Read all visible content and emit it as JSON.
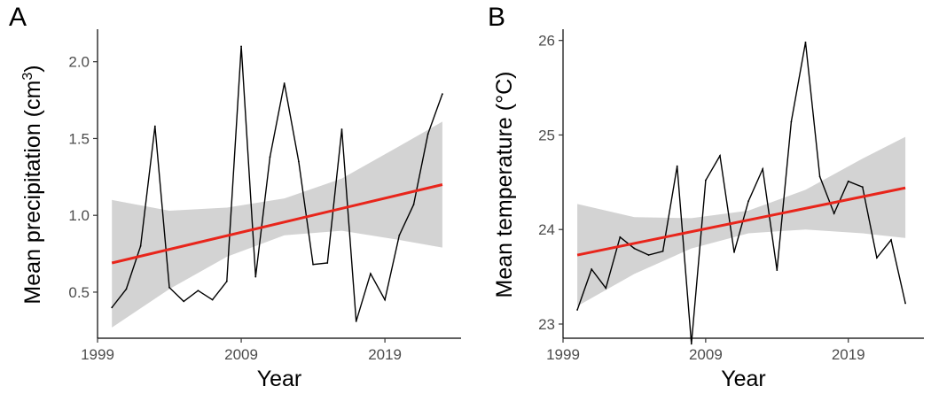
{
  "colors": {
    "trend": "#e8251b",
    "band": "#d3d3d3",
    "series": "#000000"
  },
  "chart_data": [
    {
      "panel": "A",
      "type": "line",
      "xlabel": "Year",
      "ylabel": "Mean precipitation (cm",
      "ylabel_sup": "3",
      "ylabel_close": ")",
      "xlim": [
        1999,
        2024.3
      ],
      "ylim": [
        0.2,
        2.2
      ],
      "xticks": [
        1999,
        2009,
        2019
      ],
      "yticks": [
        0.5,
        1.0,
        1.5,
        2.0
      ],
      "ytick_labels": [
        "0.5",
        "1.0",
        "1.5",
        "2.0"
      ],
      "grid": false,
      "series": [
        {
          "x": [
            2000,
            2001,
            2002,
            2003,
            2004,
            2005,
            2006,
            2007,
            2008,
            2009,
            2010,
            2011,
            2012,
            2013,
            2014,
            2015,
            2016,
            2017,
            2018,
            2019,
            2020,
            2021,
            2022,
            2023
          ],
          "y": [
            0.4,
            0.52,
            0.8,
            1.58,
            0.53,
            0.44,
            0.51,
            0.45,
            0.57,
            2.1,
            0.6,
            1.38,
            1.86,
            1.35,
            0.68,
            0.69,
            1.56,
            0.31,
            0.62,
            0.45,
            0.87,
            1.07,
            1.53,
            1.79
          ]
        }
      ],
      "trend": {
        "x": [
          2000,
          2023
        ],
        "y": [
          0.69,
          1.2
        ]
      },
      "band": {
        "x": [
          2000,
          2004,
          2008,
          2012,
          2016,
          2020,
          2023
        ],
        "lower": [
          0.27,
          0.52,
          0.73,
          0.87,
          0.9,
          0.84,
          0.79
        ],
        "upper": [
          1.1,
          1.03,
          1.05,
          1.11,
          1.24,
          1.45,
          1.61
        ]
      }
    },
    {
      "panel": "B",
      "type": "line",
      "xlabel": "Year",
      "ylabel": "Mean temperature (°C)",
      "ylabel_sup": "",
      "ylabel_close": "",
      "xlim": [
        1999,
        2024.3
      ],
      "ylim": [
        22.85,
        26.1
      ],
      "xticks": [
        1999,
        2009,
        2019
      ],
      "yticks": [
        23,
        24,
        25,
        26
      ],
      "ytick_labels": [
        "23",
        "24",
        "25",
        "26"
      ],
      "grid": false,
      "series": [
        {
          "x": [
            2000,
            2001,
            2002,
            2003,
            2004,
            2005,
            2006,
            2007,
            2008,
            2009,
            2010,
            2011,
            2012,
            2013,
            2014,
            2015,
            2016,
            2017,
            2018,
            2019,
            2020,
            2021,
            2022,
            2023
          ],
          "y": [
            23.15,
            23.58,
            23.38,
            23.92,
            23.8,
            23.73,
            23.77,
            24.67,
            22.79,
            24.52,
            24.78,
            23.76,
            24.3,
            24.64,
            23.57,
            25.14,
            25.98,
            24.56,
            24.17,
            24.51,
            24.45,
            23.7,
            23.89,
            23.22
          ]
        }
      ],
      "trend": {
        "x": [
          2000,
          2023
        ],
        "y": [
          23.73,
          24.44
        ]
      },
      "band": {
        "x": [
          2000,
          2004,
          2008,
          2012,
          2016,
          2020,
          2023
        ],
        "lower": [
          23.19,
          23.53,
          23.8,
          23.96,
          24.0,
          23.96,
          23.91
        ],
        "upper": [
          24.27,
          24.13,
          24.12,
          24.2,
          24.42,
          24.75,
          24.98
        ]
      }
    }
  ]
}
